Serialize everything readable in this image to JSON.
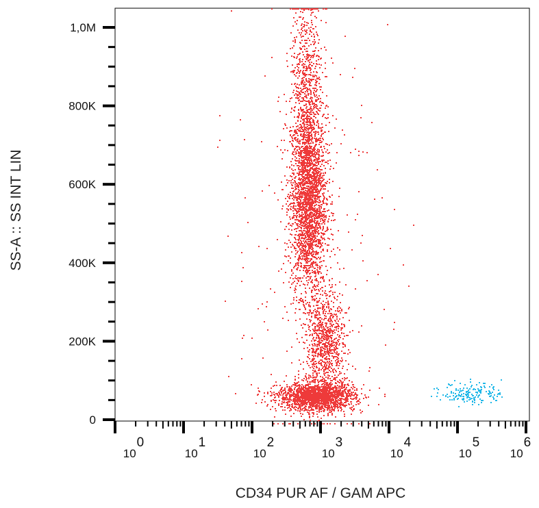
{
  "chart_data": {
    "type": "scatter",
    "title": "",
    "xlabel": "CD34 PUR AF / GAM APC",
    "ylabel": "SS-A :: SS INT LIN",
    "x_scale": "log",
    "xlim": [
      1,
      1000000
    ],
    "ylim": [
      0,
      1050000
    ],
    "x_tick_labels": [
      {
        "base": "10",
        "exp": "0",
        "value": 1
      },
      {
        "base": "10",
        "exp": "1",
        "value": 10
      },
      {
        "base": "10",
        "exp": "2",
        "value": 100
      },
      {
        "base": "10",
        "exp": "3",
        "value": 1000
      },
      {
        "base": "10",
        "exp": "4",
        "value": 10000
      },
      {
        "base": "10",
        "exp": "5",
        "value": 100000
      },
      {
        "base": "10",
        "exp": "6",
        "value": 1000000
      }
    ],
    "y_tick_labels": [
      {
        "label": "0",
        "value": 0
      },
      {
        "label": "200K",
        "value": 200000
      },
      {
        "label": "400K",
        "value": 400000
      },
      {
        "label": "600K",
        "value": 600000
      },
      {
        "label": "800K",
        "value": 800000
      },
      {
        "label": "1,0M",
        "value": 1000000
      }
    ],
    "grid": false,
    "legend": "none",
    "populations": [
      {
        "color": "#ee3a3a",
        "x_center": 650,
        "x_log_spread": 0.13,
        "y_center": 560000,
        "y_spread": 120000,
        "count": 2600
      },
      {
        "color": "#ee3a3a",
        "x_center": 620,
        "x_log_spread": 0.12,
        "y_center": 850000,
        "y_spread": 120000,
        "count": 700
      },
      {
        "color": "#ee3a3a",
        "x_center": 1150,
        "x_log_spread": 0.14,
        "y_center": 190000,
        "y_spread": 70000,
        "count": 900
      },
      {
        "color": "#ee3a3a",
        "x_center": 850,
        "x_log_spread": 0.28,
        "y_center": 60000,
        "y_spread": 18000,
        "count": 1800
      },
      {
        "color": "#ee3a3a",
        "x_center": 700,
        "x_log_spread": 0.55,
        "y_center": 400000,
        "y_spread": 280000,
        "count": 260
      },
      {
        "color": "#22b8e8",
        "x_center": 160000,
        "x_log_spread": 0.22,
        "y_center": 70000,
        "y_spread": 14000,
        "count": 170
      }
    ]
  }
}
